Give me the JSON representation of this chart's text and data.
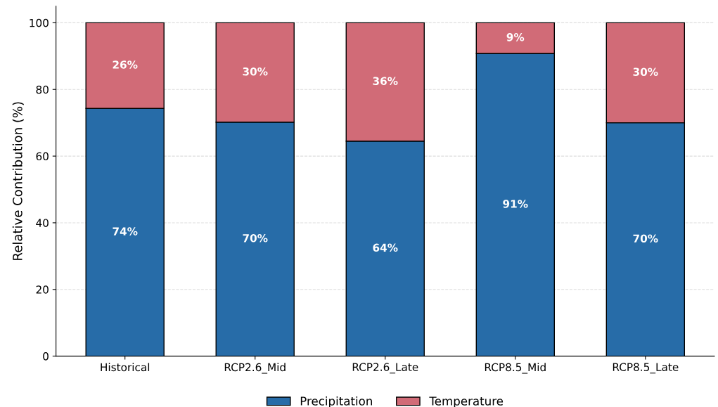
{
  "chart_data": {
    "type": "bar",
    "stacked": true,
    "ylabel": "Relative Contribution (%)",
    "categories": [
      "Historical",
      "RCP2.6_Mid",
      "RCP2.6_Late",
      "RCP8.5_Mid",
      "RCP8.5_Late"
    ],
    "series": [
      {
        "name": "Precipitation",
        "color": "#276ca8",
        "values": [
          74.3,
          70.2,
          64.5,
          90.8,
          70.0
        ],
        "value_labels": [
          "74%",
          "70%",
          "64%",
          "91%",
          "70%"
        ]
      },
      {
        "name": "Temperature",
        "color": "#d16b77",
        "values": [
          25.7,
          29.8,
          35.5,
          9.2,
          30.0
        ],
        "value_labels": [
          "26%",
          "30%",
          "36%",
          "9%",
          "30%"
        ]
      }
    ],
    "ylim": [
      0,
      105
    ],
    "yticks": [
      0,
      20,
      40,
      60,
      80,
      100
    ],
    "grid": "y",
    "legend": "bottom"
  }
}
